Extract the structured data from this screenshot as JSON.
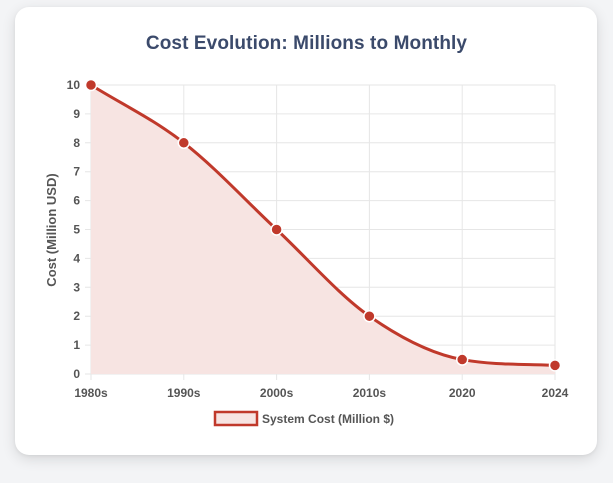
{
  "chart_data": {
    "type": "area",
    "title": "Cost Evolution: Millions to Monthly",
    "xlabel": "",
    "ylabel": "Cost (Million USD)",
    "categories": [
      "1980s",
      "1990s",
      "2000s",
      "2010s",
      "2020",
      "2024"
    ],
    "series": [
      {
        "name": "System Cost (Million $)",
        "values": [
          10,
          8,
          5,
          2,
          0.5,
          0.3
        ]
      }
    ],
    "ylim": [
      0,
      10
    ],
    "yticks": [
      "0",
      "1",
      "2",
      "3",
      "4",
      "5",
      "6",
      "7",
      "8",
      "9",
      "10"
    ],
    "grid": true,
    "legend": "bottom-center",
    "colors": {
      "line": "#c0392b",
      "fill": "#f7e4e2",
      "title": "#3b4a6b",
      "grid": "#e6e6e6",
      "text": "#555555"
    }
  }
}
